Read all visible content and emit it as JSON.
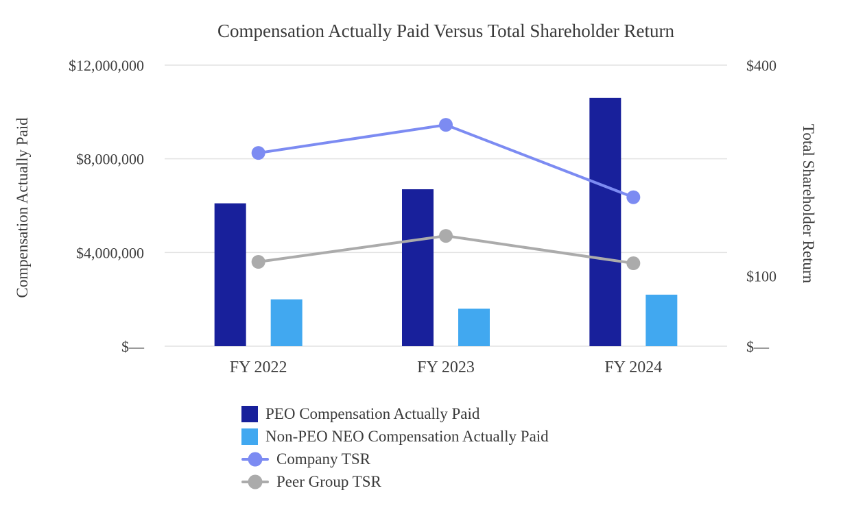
{
  "chart_data": {
    "type": "combo",
    "title": "Compensation Actually Paid Versus Total Shareholder Return",
    "categories": [
      "FY 2022",
      "FY 2023",
      "FY 2024"
    ],
    "grid": "horizontal",
    "legend_position": "bottom-left",
    "colors": {
      "gridline": "#E2E2E2",
      "text": "#3E3E3E"
    },
    "left_axis": {
      "label": "Compensation Actually Paid",
      "max": 12000000,
      "ticks": [
        {
          "value": 12000000,
          "label": "$12,000,000"
        },
        {
          "value": 8000000,
          "label": "$8,000,000"
        },
        {
          "value": 4000000,
          "label": "$4,000,000"
        },
        {
          "value": 0,
          "label": "$—"
        }
      ]
    },
    "right_axis": {
      "label": "Total Shareholder Return",
      "max": 400,
      "ticks": [
        {
          "value": 400,
          "label": "$400"
        },
        {
          "value": 100,
          "label": "$100"
        },
        {
          "value": 0,
          "label": "$—"
        }
      ]
    },
    "series": [
      {
        "name": "PEO Compensation Actually Paid",
        "type": "bar",
        "axis": "left",
        "color": "#18209B",
        "values": [
          6100000,
          6700000,
          10600000
        ]
      },
      {
        "name": "Non-PEO NEO Compensation Actually Paid",
        "type": "bar",
        "axis": "left",
        "color": "#41A8F0",
        "values": [
          2000000,
          1600000,
          2200000
        ]
      },
      {
        "name": "Company TSR",
        "type": "line",
        "axis": "right",
        "color": "#7C8BF2",
        "values": [
          275,
          315,
          212
        ]
      },
      {
        "name": "Peer Group TSR",
        "type": "line",
        "axis": "right",
        "color": "#ABABAB",
        "values": [
          120,
          157,
          118
        ]
      }
    ]
  }
}
